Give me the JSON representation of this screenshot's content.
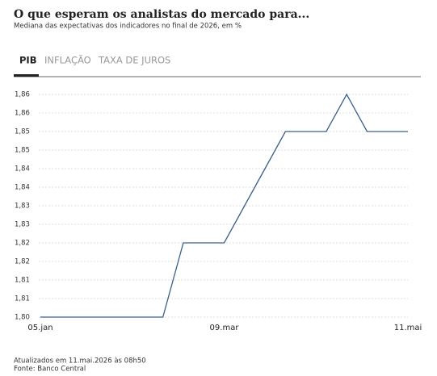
{
  "tabs": [
    "PIB",
    "INFLAÇÃO",
    "TAXA DE JUROS"
  ],
  "chart_data": {
    "type": "line",
    "title": "O que esperam os analistas do mercado para...",
    "subtitle": "Mediana das expectativas dos indicadores no final de 2026, em %",
    "categories": [
      "05.jan",
      null,
      null,
      null,
      null,
      null,
      null,
      null,
      null,
      "09.mar",
      null,
      null,
      null,
      null,
      null,
      null,
      null,
      null,
      "11.mai"
    ],
    "series": [
      {
        "name": "PIB",
        "color": "#3a5f8a",
        "values": [
          1.8,
          1.8,
          1.8,
          1.8,
          1.8,
          1.8,
          1.8,
          1.82,
          1.82,
          1.82,
          1.83,
          1.84,
          1.85,
          1.85,
          1.85,
          1.86,
          1.85,
          1.85,
          1.85
        ]
      }
    ],
    "ylim": [
      1.8,
      1.86
    ],
    "yticks": [
      {
        "value": 1.8,
        "label": "1,80"
      },
      {
        "value": 1.805,
        "label": "1,81"
      },
      {
        "value": 1.81,
        "label": "1,81"
      },
      {
        "value": 1.815,
        "label": "1,82"
      },
      {
        "value": 1.82,
        "label": "1,82"
      },
      {
        "value": 1.825,
        "label": "1,83"
      },
      {
        "value": 1.83,
        "label": "1,83"
      },
      {
        "value": 1.835,
        "label": "1,84"
      },
      {
        "value": 1.84,
        "label": "1,84"
      },
      {
        "value": 1.845,
        "label": "1,85"
      },
      {
        "value": 1.85,
        "label": "1,85"
      },
      {
        "value": 1.855,
        "label": "1,86"
      },
      {
        "value": 1.86,
        "label": "1,86"
      }
    ],
    "grid": true
  },
  "footer": [
    "Atualizados em 11.mai.2026 às 08h50",
    "Fonte: Banco Central"
  ]
}
